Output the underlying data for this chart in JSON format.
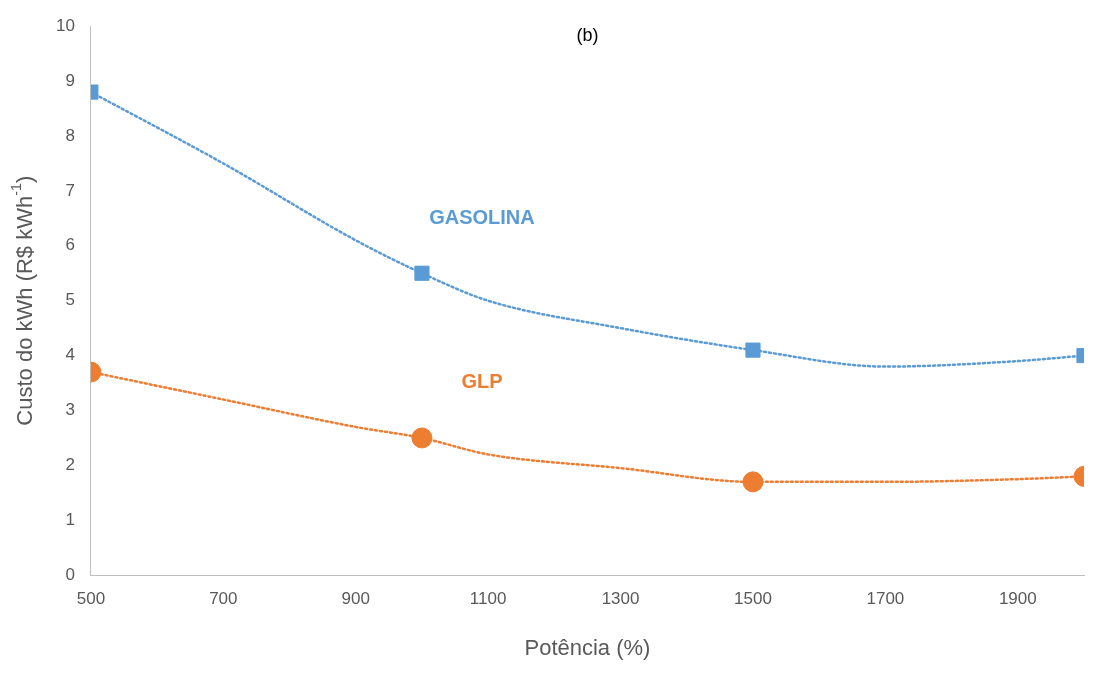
{
  "chart_data": {
    "type": "scatter",
    "title": "(b)",
    "xlabel": "Potência (%)",
    "ylabel": "Custo do kWh (R$ kWh$^{-1}$)",
    "xlim": [
      500,
      2000
    ],
    "xticks": [
      500,
      700,
      900,
      1100,
      1300,
      1500,
      1700,
      1900
    ],
    "ylim": [
      0,
      10
    ],
    "yticks": [
      0,
      1,
      2,
      3,
      4,
      5,
      6,
      7,
      8,
      9,
      10
    ],
    "grid": false,
    "legend": false,
    "series": [
      {
        "type": "line",
        "color": "#5b9bd5",
        "marker": "none",
        "line_style": "dotted",
        "x": [
          500,
          700,
          900,
          1000,
          1100,
          1300,
          1500,
          1700,
          1900,
          2000
        ],
        "values": [
          8.8,
          7.5,
          6.1,
          5.5,
          5.0,
          4.5,
          4.1,
          3.8,
          3.9,
          4.0
        ]
      },
      {
        "type": "line",
        "color": "#ed7d31",
        "marker": "none",
        "line_style": "dotted",
        "x": [
          500,
          700,
          900,
          1000,
          1100,
          1300,
          1500,
          1700,
          1900,
          2000
        ],
        "values": [
          3.7,
          3.2,
          2.7,
          2.5,
          2.2,
          1.95,
          1.7,
          1.7,
          1.75,
          1.8
        ]
      },
      {
        "type": "scatter",
        "name": "GASOLINA",
        "color": "#5b9bd5",
        "marker": "square",
        "x": [
          500,
          1000,
          1500,
          2000
        ],
        "values": [
          8.8,
          5.5,
          4.1,
          4.0
        ]
      },
      {
        "type": "scatter",
        "name": "GLP",
        "color": "#ed7d31",
        "marker": "circle",
        "x": [
          500,
          1000,
          1500,
          2000
        ],
        "values": [
          3.7,
          2.5,
          1.7,
          1.8
        ]
      }
    ]
  }
}
